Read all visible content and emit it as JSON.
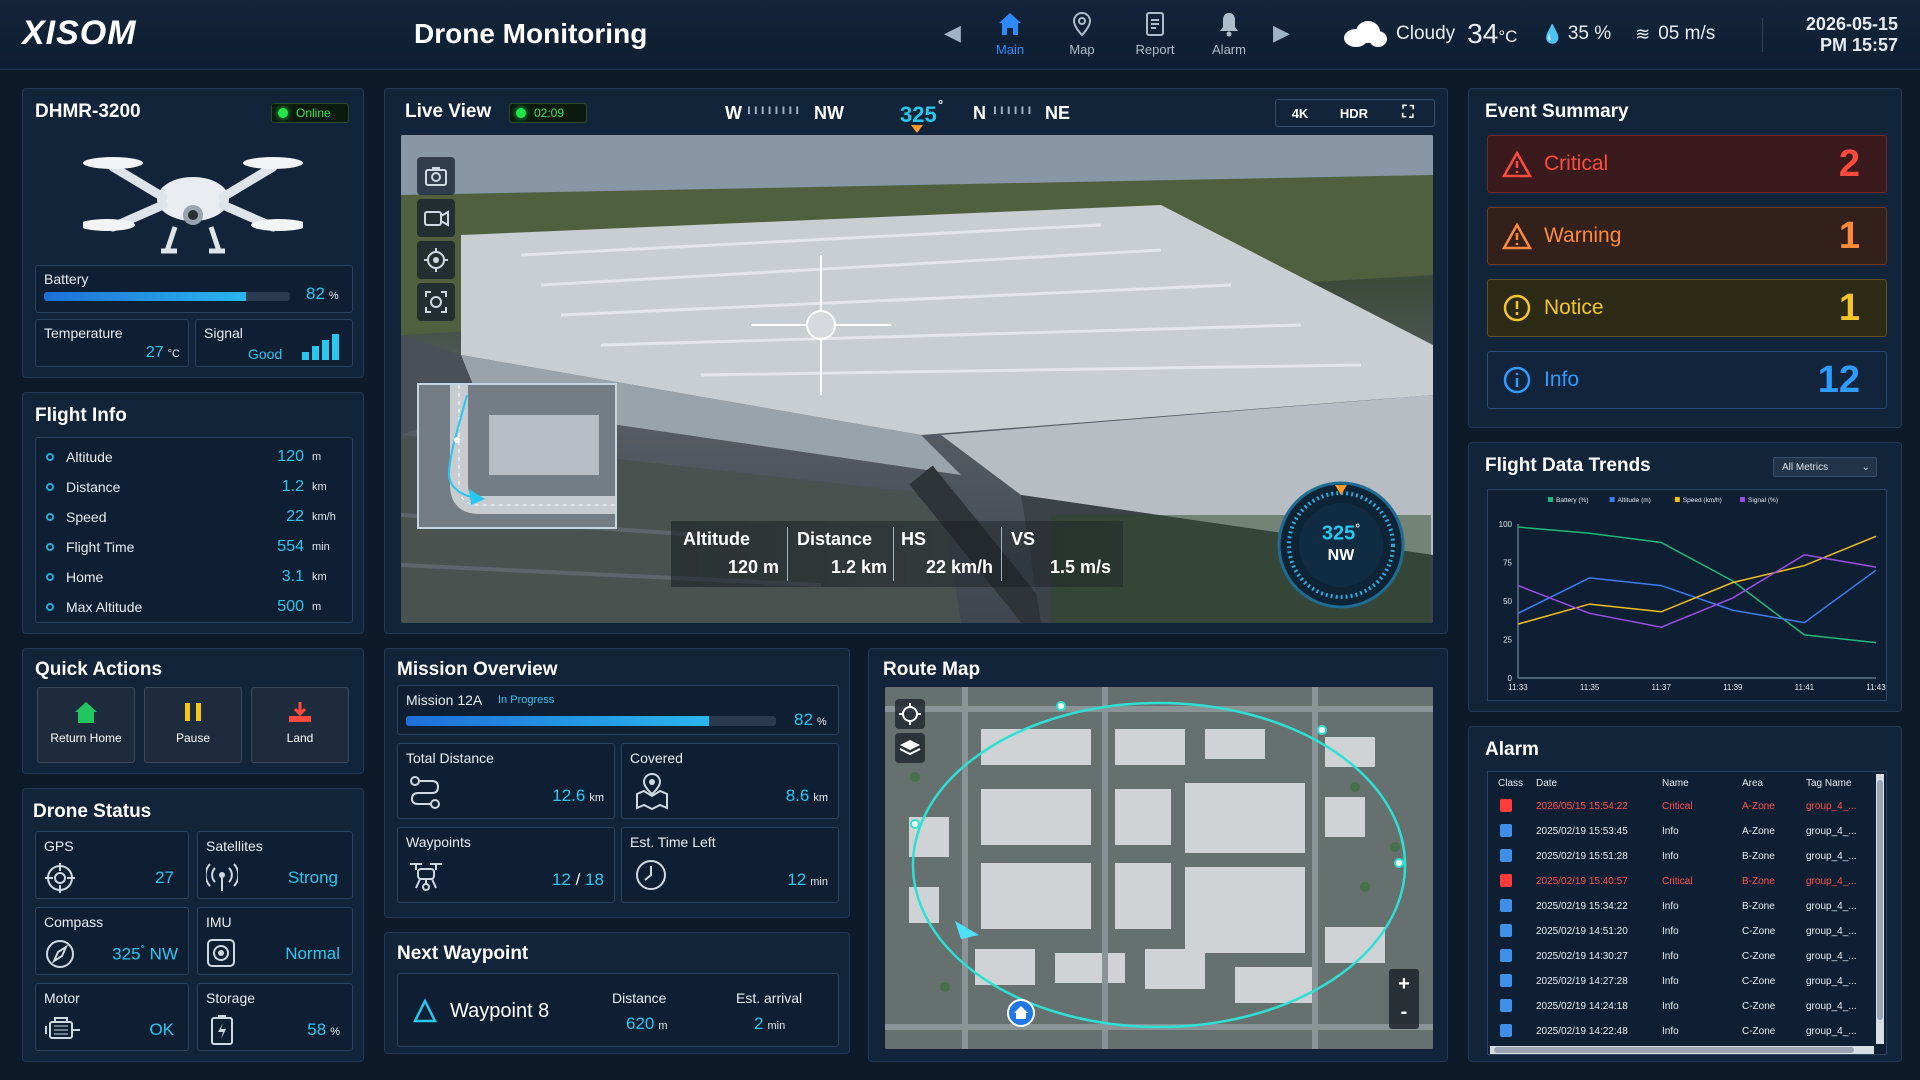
{
  "header": {
    "logo": "XISOM",
    "title": "Drone Monitoring",
    "nav": [
      {
        "label": "Main",
        "icon": "home-icon"
      },
      {
        "label": "Map",
        "icon": "map-pin-icon"
      },
      {
        "label": "Report",
        "icon": "report-icon"
      },
      {
        "label": "Alarm",
        "icon": "bell-icon"
      }
    ],
    "weather": {
      "condition": "Cloudy",
      "temp": "34",
      "temp_unit": "°C",
      "humidity": "35 %",
      "wind": "05 m/s"
    },
    "date": "2026-05-15",
    "time": "PM 15:57"
  },
  "drone": {
    "model": "DHMR-3200",
    "status": "Online",
    "battery_label": "Battery",
    "battery_value": "82",
    "battery_pct": 82,
    "battery_unit": "%",
    "temp_label": "Temperature",
    "temp_value": "27",
    "temp_unit": "°C",
    "signal_label": "Signal",
    "signal_value": "Good"
  },
  "flight_info": {
    "title": "Flight Info",
    "rows": [
      {
        "label": "Altitude",
        "value": "120",
        "unit": "m"
      },
      {
        "label": "Distance",
        "value": "1.2",
        "unit": "km"
      },
      {
        "label": "Speed",
        "value": "22",
        "unit": "km/h"
      },
      {
        "label": "Flight Time",
        "value": "554",
        "unit": "min"
      },
      {
        "label": "Home",
        "value": "3.1",
        "unit": "km"
      },
      {
        "label": "Max Altitude",
        "value": "500",
        "unit": "m"
      }
    ]
  },
  "quick_actions": {
    "title": "Quick Actions",
    "buttons": [
      "Return Home",
      "Pause",
      "Land"
    ]
  },
  "drone_status": {
    "title": "Drone Status",
    "gps_label": "GPS",
    "gps_value": "27",
    "sat_label": "Satellites",
    "sat_value": "Strong",
    "compass_label": "Compass",
    "compass_value": "325",
    "compass_deg": "°",
    "compass_dir": "NW",
    "imu_label": "IMU",
    "imu_value": "Normal",
    "motor_label": "Motor",
    "motor_value": "OK",
    "storage_label": "Storage",
    "storage_value": "58",
    "storage_unit": "%"
  },
  "live": {
    "title": "Live View",
    "timer": "02:09",
    "heading": [
      "W",
      "NW",
      "325",
      "°",
      "N",
      "NE"
    ],
    "btn_4k": "4K",
    "btn_hdr": "HDR",
    "hud": [
      {
        "label": "Altitude",
        "value": "120 m"
      },
      {
        "label": "Distance",
        "value": "1.2 km"
      },
      {
        "label": "HS",
        "value": "22 km/h"
      },
      {
        "label": "VS",
        "value": "1.5 m/s"
      }
    ],
    "compass_deg": "325",
    "compass_sym": "°",
    "compass_dir": "NW"
  },
  "mission": {
    "title": "Mission Overview",
    "name": "Mission 12A",
    "state": "In Progress",
    "progress": "82",
    "progress_pct": 82,
    "progress_unit": "%",
    "total_label": "Total Distance",
    "total_value": "12.6",
    "total_unit": "km",
    "covered_label": "Covered",
    "covered_value": "8.6",
    "covered_unit": "km",
    "wp_label": "Waypoints",
    "wp_value": "12",
    "wp_total": "18",
    "wp_sep": "/",
    "etl_label": "Est. Time Left",
    "etl_value": "12",
    "etl_unit": "min"
  },
  "next_wp": {
    "title": "Next Waypoint",
    "name": "Waypoint 8",
    "dist_label": "Distance",
    "dist_value": "620",
    "dist_unit": "m",
    "arr_label": "Est. arrival",
    "arr_value": "2",
    "arr_unit": "min"
  },
  "route": {
    "title": "Route Map",
    "zoom_in": "+",
    "zoom_out": "-"
  },
  "events": {
    "title": "Event Summary",
    "items": [
      {
        "label": "Critical",
        "count": "2",
        "color": "#ff4a3d"
      },
      {
        "label": "Warning",
        "count": "1",
        "color": "#ff8a3a"
      },
      {
        "label": "Notice",
        "count": "1",
        "color": "#f5c62a"
      },
      {
        "label": "Info",
        "count": "12",
        "color": "#2e9bff"
      }
    ]
  },
  "trends": {
    "title": "Flight Data Trends",
    "filter": "All Metrics"
  },
  "chart_data": {
    "type": "line",
    "x": [
      "11:33",
      "11:35",
      "11:37",
      "11:39",
      "11:41",
      "11:43"
    ],
    "ylim": [
      0,
      100
    ],
    "yticks": [
      0,
      25,
      50,
      75,
      100
    ],
    "series": [
      {
        "name": "Battery (%)",
        "color": "#1fb87a",
        "values": [
          98,
          94,
          88,
          63,
          28,
          23
        ]
      },
      {
        "name": "Altitude (m)",
        "color": "#3a7cf0",
        "values": [
          42,
          65,
          60,
          44,
          36,
          70
        ]
      },
      {
        "name": "Speed (km/h)",
        "color": "#f2c01e",
        "values": [
          35,
          48,
          43,
          62,
          73,
          92
        ]
      },
      {
        "name": "Signal (%)",
        "color": "#9b4de6",
        "values": [
          60,
          42,
          33,
          52,
          80,
          72
        ]
      }
    ]
  },
  "alarm": {
    "title": "Alarm",
    "cols": [
      "Class",
      "Date",
      "Name",
      "Area",
      "Tag Name"
    ],
    "rows": [
      {
        "date": "2026/05/15 15:54:22",
        "name": "Critical",
        "area": "A-Zone",
        "tag": "group_4_...",
        "crit": true
      },
      {
        "date": "2025/02/19 15:53:45",
        "name": "Info",
        "area": "A-Zone",
        "tag": "group_4_...",
        "crit": false
      },
      {
        "date": "2025/02/19 15:51:28",
        "name": "Info",
        "area": "B-Zone",
        "tag": "group_4_...",
        "crit": false
      },
      {
        "date": "2025/02/19 15:40:57",
        "name": "Critical",
        "area": "B-Zone",
        "tag": "group_4_...",
        "crit": true
      },
      {
        "date": "2025/02/19 15:34:22",
        "name": "Info",
        "area": "B-Zone",
        "tag": "group_4_...",
        "crit": false
      },
      {
        "date": "2025/02/19 14:51:20",
        "name": "Info",
        "area": "C-Zone",
        "tag": "group_4_...",
        "crit": false
      },
      {
        "date": "2025/02/19 14:30:27",
        "name": "Info",
        "area": "C-Zone",
        "tag": "group_4_...",
        "crit": false
      },
      {
        "date": "2025/02/19 14:27:28",
        "name": "Info",
        "area": "C-Zone",
        "tag": "group_4_...",
        "crit": false
      },
      {
        "date": "2025/02/19 14:24:18",
        "name": "Info",
        "area": "C-Zone",
        "tag": "group_4_...",
        "crit": false
      },
      {
        "date": "2025/02/19 14:22:48",
        "name": "Info",
        "area": "C-Zone",
        "tag": "group_4_...",
        "crit": false
      }
    ]
  }
}
